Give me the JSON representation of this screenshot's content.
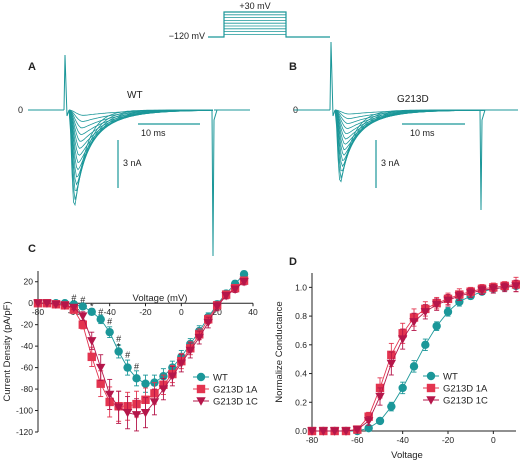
{
  "colors": {
    "teal": "#1b9799",
    "red": "#e3344f",
    "crimson": "#b5164a",
    "axis": "#222222"
  },
  "protocol": {
    "top_label": "+30 mV",
    "hold_label": "−120 mV"
  },
  "panels": {
    "A": {
      "letter": "A",
      "label": "WT",
      "zero": "0",
      "time_scale": "10 ms",
      "current_scale": "3 nA"
    },
    "B": {
      "letter": "B",
      "label": "G213D",
      "zero": "0",
      "time_scale": "10 ms",
      "current_scale": "3 nA"
    },
    "C": {
      "letter": "C"
    },
    "D": {
      "letter": "D"
    }
  },
  "chart_data": [
    {
      "panel": "C",
      "type": "line",
      "xlabel": "Voltage (mV)",
      "ylabel": "Current Density (pA/pF)",
      "xlim": [
        -80,
        40
      ],
      "ylim": [
        -120,
        30
      ],
      "xticks": [
        "-80",
        "-60",
        "-40",
        "-20",
        "0",
        "20",
        "40"
      ],
      "yticks": [
        "20",
        "0",
        "-20",
        "-40",
        "-60",
        "-80",
        "-100",
        "-120"
      ],
      "x": [
        -80,
        -75,
        -70,
        -65,
        -60,
        -55,
        -50,
        -45,
        -40,
        -35,
        -30,
        -25,
        -20,
        -15,
        -10,
        -5,
        0,
        5,
        10,
        15,
        20,
        25,
        30,
        35
      ],
      "series": [
        {
          "name": "WT",
          "marker": "circle",
          "color": "#1b9799",
          "values": [
            0,
            0,
            0,
            0,
            -1,
            -3,
            -8,
            -15,
            -27,
            -45,
            -60,
            -70,
            -75,
            -74,
            -68,
            -60,
            -50,
            -38,
            -26,
            -13,
            -1,
            9,
            18,
            27
          ],
          "errors": [
            0,
            0,
            0,
            0,
            1,
            2,
            3,
            4,
            5,
            6,
            7,
            7,
            8,
            7,
            7,
            6,
            6,
            5,
            5,
            4,
            3,
            3,
            3,
            3
          ]
        },
        {
          "name": "G213D 1A",
          "marker": "square",
          "color": "#e3344f",
          "values": [
            0,
            0,
            -1,
            -2,
            -6,
            -20,
            -50,
            -75,
            -92,
            -96,
            -96,
            -94,
            -90,
            -84,
            -76,
            -66,
            -54,
            -42,
            -29,
            -15,
            -2,
            8,
            14,
            21
          ],
          "errors": [
            0,
            0,
            1,
            1,
            2,
            4,
            9,
            12,
            14,
            14,
            13,
            12,
            11,
            10,
            9,
            8,
            7,
            6,
            5,
            4,
            3,
            3,
            3,
            3
          ]
        },
        {
          "name": "G213D 1C",
          "marker": "triangle",
          "color": "#b5164a",
          "values": [
            0,
            0,
            -1,
            -2,
            -4,
            -12,
            -35,
            -60,
            -85,
            -97,
            -102,
            -104,
            -102,
            -92,
            -80,
            -68,
            -56,
            -44,
            -32,
            -18,
            -3,
            7,
            13,
            20
          ],
          "errors": [
            0,
            0,
            1,
            1,
            2,
            4,
            8,
            12,
            14,
            15,
            15,
            15,
            14,
            12,
            10,
            9,
            8,
            7,
            6,
            5,
            4,
            3,
            3,
            3
          ]
        }
      ],
      "annotations": [
        {
          "text": "#",
          "x": -60,
          "y": 2
        },
        {
          "text": "#",
          "x": -55,
          "y": 0
        },
        {
          "text": "*",
          "x": -50,
          "y": -6
        },
        {
          "text": "#",
          "x": -45,
          "y": -11
        },
        {
          "text": "#",
          "x": -40,
          "y": -20
        },
        {
          "text": "#",
          "x": -35,
          "y": -36
        },
        {
          "text": "*",
          "x": -35,
          "y": -43
        },
        {
          "text": "#",
          "x": -30,
          "y": -51
        },
        {
          "text": "#",
          "x": -25,
          "y": -62
        }
      ],
      "legend": "bottom-right"
    },
    {
      "panel": "D",
      "type": "line",
      "xlabel": "Voltage",
      "ylabel": "Normalize Conductance",
      "xlim": [
        -80,
        10
      ],
      "ylim": [
        0,
        1.1
      ],
      "xticks": [
        "-80",
        "-60",
        "-40",
        "-20",
        "0"
      ],
      "yticks": [
        "0.0",
        "0.2",
        "0.4",
        "0.6",
        "0.8",
        "1.0"
      ],
      "x": [
        -80,
        -75,
        -70,
        -65,
        -60,
        -55,
        -50,
        -45,
        -40,
        -35,
        -30,
        -25,
        -20,
        -15,
        -10,
        -5,
        0,
        5,
        10
      ],
      "series": [
        {
          "name": "WT",
          "marker": "circle",
          "color": "#1b9799",
          "values": [
            0,
            0,
            0,
            0,
            0,
            0.02,
            0.07,
            0.17,
            0.3,
            0.45,
            0.6,
            0.73,
            0.83,
            0.9,
            0.94,
            0.97,
            0.99,
            1.0,
            1.01
          ],
          "errors": [
            0,
            0,
            0,
            0,
            0,
            0.01,
            0.02,
            0.03,
            0.04,
            0.04,
            0.04,
            0.03,
            0.03,
            0.03,
            0.02,
            0.02,
            0.02,
            0.02,
            0.02
          ]
        },
        {
          "name": "G213D 1A",
          "marker": "square",
          "color": "#e3344f",
          "values": [
            0,
            0,
            0,
            0,
            0.01,
            0.1,
            0.3,
            0.53,
            0.68,
            0.79,
            0.85,
            0.89,
            0.92,
            0.95,
            0.97,
            0.99,
            1.0,
            1.01,
            1.02
          ],
          "errors": [
            0,
            0,
            0,
            0,
            0.01,
            0.03,
            0.07,
            0.08,
            0.07,
            0.06,
            0.05,
            0.04,
            0.04,
            0.04,
            0.03,
            0.03,
            0.03,
            0.03,
            0.05
          ]
        },
        {
          "name": "G213D 1C",
          "marker": "triangle",
          "color": "#b5164a",
          "values": [
            0,
            0,
            0,
            0,
            0.01,
            0.07,
            0.24,
            0.47,
            0.64,
            0.76,
            0.83,
            0.88,
            0.91,
            0.94,
            0.96,
            0.98,
            0.99,
            1.0,
            1.01
          ],
          "errors": [
            0,
            0,
            0,
            0,
            0.01,
            0.03,
            0.06,
            0.08,
            0.07,
            0.06,
            0.05,
            0.04,
            0.04,
            0.03,
            0.03,
            0.03,
            0.03,
            0.03,
            0.04
          ]
        }
      ],
      "legend": "bottom-right"
    }
  ]
}
